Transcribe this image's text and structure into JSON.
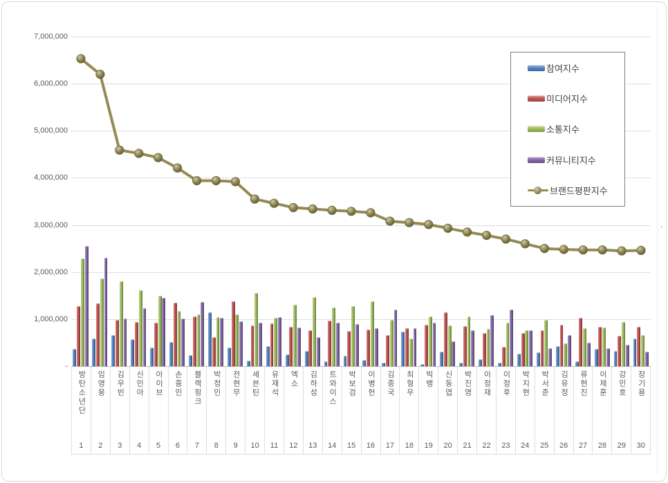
{
  "chart_data": {
    "type": "bar",
    "subtype": "grouped-bars-with-line-overlay",
    "title": "",
    "xlabel": "",
    "ylabel": "",
    "ylim": [
      0,
      7000000
    ],
    "grid": true,
    "legend_position": "upper right",
    "y_ticks": [
      "-",
      "1,000,000",
      "2,000,000",
      "3,000,000",
      "4,000,000",
      "5,000,000",
      "6,000,000",
      "7,000,000"
    ],
    "categories": [
      "방탄소년단",
      "임영웅",
      "김우빈",
      "신민아",
      "아이브",
      "손흥민",
      "블랙핑크",
      "박정민",
      "전현무",
      "세븐틴",
      "유재석",
      "엑소",
      "김하성",
      "트와이스",
      "박보검",
      "이병헌",
      "김종국",
      "최형우",
      "빅뱅",
      "신동엽",
      "박진영",
      "이정재",
      "이정후",
      "박지현",
      "박서준",
      "김유정",
      "류현진",
      "이제훈",
      "강민호",
      "장기용"
    ],
    "ranks": [
      "1",
      "2",
      "3",
      "4",
      "5",
      "6",
      "7",
      "8",
      "9",
      "10",
      "11",
      "12",
      "13",
      "14",
      "15",
      "16",
      "17",
      "18",
      "19",
      "20",
      "21",
      "22",
      "23",
      "24",
      "25",
      "26",
      "27",
      "28",
      "29",
      "30"
    ],
    "series": [
      {
        "name": "참여지수",
        "key": "participation-index",
        "type": "bar",
        "color": "#4F81BD",
        "values": [
          360000,
          590000,
          660000,
          570000,
          390000,
          510000,
          240000,
          1150000,
          400000,
          120000,
          420000,
          250000,
          330000,
          100000,
          220000,
          130000,
          70000,
          740000,
          50000,
          310000,
          80000,
          140000,
          70000,
          260000,
          300000,
          420000,
          100000,
          370000,
          330000,
          580000
        ]
      },
      {
        "name": "미디어지수",
        "key": "media-index",
        "type": "bar",
        "color": "#C0504D",
        "values": [
          1270000,
          1330000,
          980000,
          940000,
          930000,
          1350000,
          1060000,
          610000,
          1380000,
          860000,
          910000,
          830000,
          760000,
          970000,
          750000,
          780000,
          660000,
          810000,
          880000,
          1150000,
          850000,
          700000,
          410000,
          700000,
          770000,
          880000,
          1030000,
          840000,
          650000,
          840000
        ]
      },
      {
        "name": "소통지수",
        "key": "communication-index",
        "type": "bar",
        "color": "#9BBB59",
        "values": [
          2290000,
          1860000,
          1800000,
          1620000,
          1490000,
          1180000,
          1100000,
          1040000,
          1100000,
          1550000,
          1030000,
          1300000,
          1470000,
          1250000,
          1280000,
          1380000,
          980000,
          580000,
          1060000,
          860000,
          1050000,
          800000,
          930000,
          770000,
          980000,
          480000,
          810000,
          820000,
          940000,
          660000
        ]
      },
      {
        "name": "커뮤니티지수",
        "key": "community-index",
        "type": "bar",
        "color": "#8064A2",
        "values": [
          2560000,
          2300000,
          1010000,
          1240000,
          1460000,
          1010000,
          1360000,
          1030000,
          950000,
          930000,
          1040000,
          820000,
          610000,
          930000,
          890000,
          810000,
          1200000,
          810000,
          920000,
          530000,
          770000,
          1080000,
          1210000,
          770000,
          380000,
          660000,
          500000,
          380000,
          460000,
          310000
        ]
      },
      {
        "name": "브랜드평판지수",
        "key": "brand-reputation-index",
        "type": "line",
        "color": "#948A54",
        "values": [
          6530000,
          6200000,
          4590000,
          4520000,
          4430000,
          4210000,
          3940000,
          3940000,
          3920000,
          3550000,
          3460000,
          3370000,
          3340000,
          3310000,
          3290000,
          3260000,
          3080000,
          3050000,
          3010000,
          2930000,
          2850000,
          2780000,
          2700000,
          2600000,
          2500000,
          2480000,
          2470000,
          2470000,
          2450000,
          2460000
        ]
      }
    ],
    "colors": {
      "grid": "#dedede",
      "axis": "#b9b9b9",
      "tick_label": "#595959",
      "legend_border": "#7f7f7f"
    }
  },
  "artifacts": {
    "stray_dot": "."
  }
}
